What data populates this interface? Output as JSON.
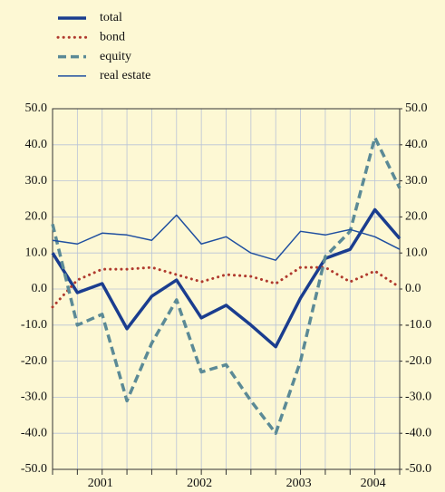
{
  "chart_data": {
    "type": "line",
    "categories": [
      null,
      null,
      "2001",
      null,
      null,
      null,
      "2002",
      null,
      null,
      null,
      "2003",
      null,
      null,
      "2004",
      null
    ],
    "series": [
      {
        "name": "total",
        "color": "#1a3d8f",
        "style": "thick",
        "values": [
          10,
          -1,
          1.5,
          -11,
          -2,
          2.5,
          -8,
          -4.5,
          -10,
          -16,
          -2.5,
          8.5,
          11,
          22,
          14
        ]
      },
      {
        "name": "bond",
        "color": "#b03a2e",
        "style": "dotted",
        "values": [
          -5,
          2.5,
          5.5,
          5.5,
          6,
          4,
          2,
          4,
          3.5,
          1.5,
          6,
          6,
          2,
          5,
          0.5
        ]
      },
      {
        "name": "equity",
        "color": "#5b8a96",
        "style": "dashed",
        "values": [
          18,
          -10,
          -7,
          -31,
          -15,
          -3,
          -23,
          -21,
          -31,
          -40,
          -20,
          9,
          16,
          42,
          28
        ]
      },
      {
        "name": "real estate",
        "color": "#1f4fa0",
        "style": "thin",
        "values": [
          13.5,
          12.5,
          15.5,
          15,
          13.5,
          20.5,
          12.5,
          14.5,
          10,
          8,
          16,
          15,
          16.5,
          14.5,
          11
        ]
      }
    ],
    "ylim": [
      -50,
      50
    ],
    "yticks": [
      {
        "value": -50,
        "label": "-50.0"
      },
      {
        "value": -40,
        "label": "-40.0"
      },
      {
        "value": -30,
        "label": "-30.0"
      },
      {
        "value": -20,
        "label": "-20.0"
      },
      {
        "value": -10,
        "label": "-10.0"
      },
      {
        "value": 0,
        "label": "0.0"
      },
      {
        "value": 10,
        "label": "10.0"
      },
      {
        "value": 20,
        "label": "20.0"
      },
      {
        "value": 30,
        "label": "30.0"
      },
      {
        "value": 40,
        "label": "40.0"
      },
      {
        "value": 50,
        "label": "50.0"
      }
    ],
    "y2lim": [
      -50,
      50
    ],
    "y2ticks": [
      {
        "value": -50,
        "label": "-50.0"
      },
      {
        "value": -40,
        "label": "-40.0"
      },
      {
        "value": -30,
        "label": "-30.0"
      },
      {
        "value": -20,
        "label": "-20.0"
      },
      {
        "value": -10,
        "label": "-10.0"
      },
      {
        "value": 0,
        "label": "0.0"
      },
      {
        "value": 10,
        "label": "10.0"
      },
      {
        "value": 20,
        "label": "20.0"
      },
      {
        "value": 30,
        "label": "30.0"
      },
      {
        "value": 40,
        "label": "40.0"
      },
      {
        "value": 50,
        "label": "50.0"
      }
    ],
    "grid": true
  }
}
